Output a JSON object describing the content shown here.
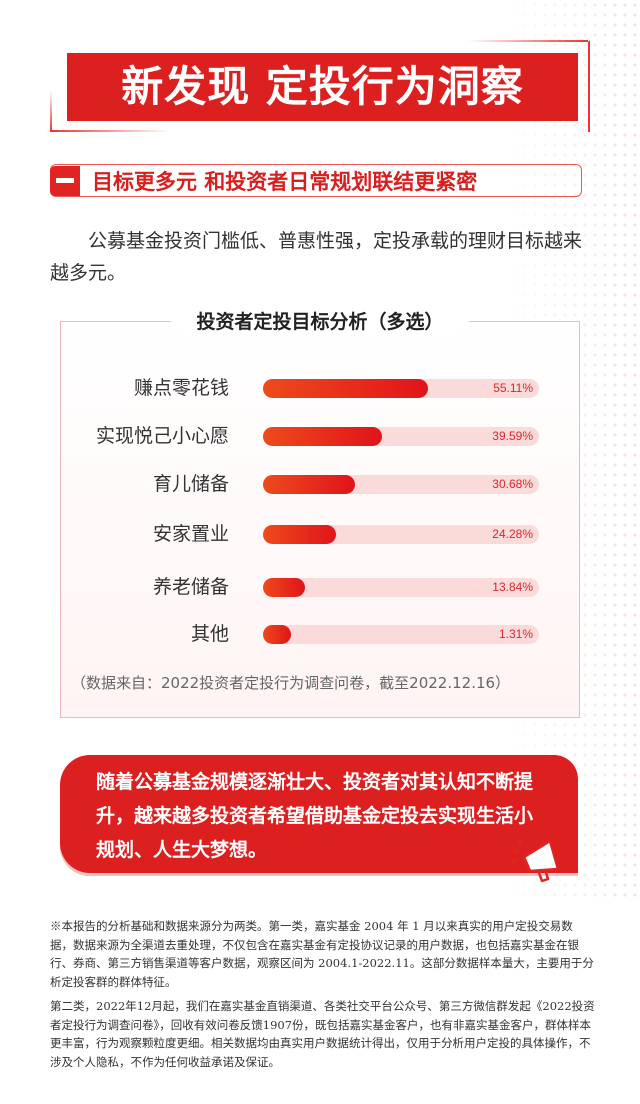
{
  "title": "新发现 定投行为洞察",
  "section": {
    "number_icon": "dash",
    "title": "目标更多元  和投资者日常规划联结更紧密"
  },
  "intro": "公募基金投资门槛低、普惠性强，定投承载的理财目标越来越多元。",
  "colors": {
    "accent": "#dc1f1f",
    "track": "#fbdada",
    "bar_start": "#ee4a1c",
    "bar_end": "#e0141a"
  },
  "chart_data": {
    "type": "bar",
    "orientation": "horizontal",
    "title": "投资者定投目标分析（多选）",
    "categories": [
      "赚点零花钱",
      "实现悦己小心愿",
      "育儿储备",
      "安家置业",
      "养老储备",
      "其他"
    ],
    "values": [
      55.11,
      39.59,
      30.68,
      24.28,
      13.84,
      1.31
    ],
    "value_labels": [
      "55.11%",
      "39.59%",
      "30.68%",
      "24.28%",
      "13.84%",
      "1.31%"
    ],
    "unit": "%",
    "source": "（数据来自：2022投资者定投行为调查问卷，截至2022.12.16）"
  },
  "callout": {
    "text": "随着公募基金规模逐渐壮大、投资者对其认知不断提升，越来越多投资者希望借助基金定投去实现生活小规划、人生大梦想。",
    "icon": "megaphone-icon"
  },
  "notes": [
    "※本报告的分析基础和数据来源分为两类。第一类，嘉实基金 2004 年 1 月以来真实的用户定投交易数据，数据来源为全渠道去重处理，不仅包含在嘉实基金有定投协议记录的用户数据，也包括嘉实基金在银行、券商、第三方销售渠道等客户数据，观察区间为 2004.1-2022.11。这部分数据样本量大，主要用于分析定投客群的群体特征。",
    "第二类，2022年12月起，我们在嘉实基金直销渠道、各类社交平台公众号、第三方微信群发起《2022投资者定投行为调查问卷》，回收有效问卷反馈1907份，既包括嘉实基金客户，也有非嘉实基金客户，群体样本更丰富，行为观察颗粒度更细。相关数据均由真实用户数据统计得出，仅用于分析用户定投的具体操作，不涉及个人隐私，不作为任何收益承诺及保证。"
  ]
}
